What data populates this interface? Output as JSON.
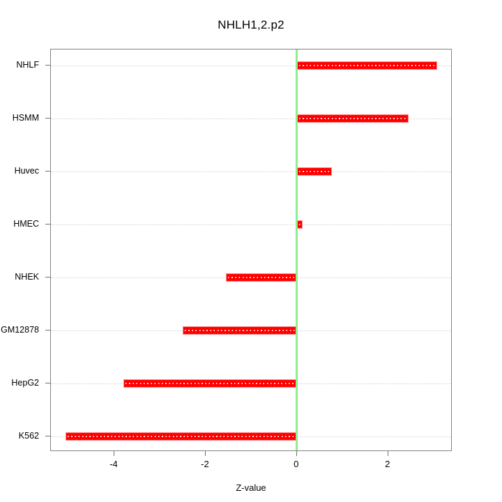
{
  "title": "NHLH1,2.p2",
  "chart_data": {
    "type": "bar",
    "orientation": "horizontal",
    "title": "NHLH1,2.p2",
    "xlabel": "Z-value",
    "ylabel": "",
    "categories": [
      "NHLF",
      "HSMM",
      "Huvec",
      "HMEC",
      "NHEK",
      "GM12878",
      "HepG2",
      "K562"
    ],
    "values": [
      3.08,
      2.44,
      0.76,
      0.12,
      -1.55,
      -2.5,
      -3.8,
      -5.07
    ],
    "xlim": [
      -5.39,
      3.41
    ],
    "xticks": [
      -4,
      -2,
      0,
      2
    ],
    "bar_color": "#ff0000",
    "bar_edge_color": "#ff8a8a",
    "zero_line_color": "#90ee90",
    "grid": "dotted-horizontal-per-category",
    "box_color": "#828282",
    "legend": "none"
  }
}
